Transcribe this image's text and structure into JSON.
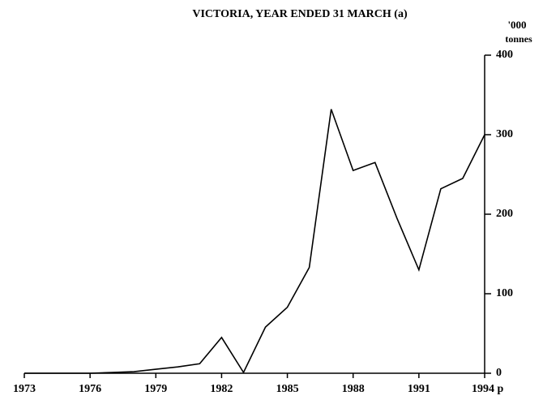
{
  "chart_data": {
    "type": "line",
    "title": "VICTORIA, YEAR ENDED 31 MARCH (a)",
    "y_label_lines": [
      "'000",
      "tonnes"
    ],
    "x": [
      1973,
      1974,
      1975,
      1976,
      1977,
      1978,
      1979,
      1980,
      1981,
      1982,
      1983,
      1984,
      1985,
      1986,
      1987,
      1988,
      1989,
      1990,
      1991,
      1992,
      1993,
      1994
    ],
    "series": [
      {
        "color": "#000000",
        "values": [
          0,
          0,
          0,
          0,
          1,
          2,
          5,
          8,
          12,
          45,
          1,
          58,
          83,
          133,
          332,
          255,
          265,
          195,
          130,
          232,
          245,
          300
        ]
      }
    ],
    "xlim": [
      1973,
      1994
    ],
    "xticks": [
      1973,
      1976,
      1979,
      1982,
      1985,
      1988,
      1991,
      {
        "value": 1994,
        "label": "1994 p"
      }
    ],
    "ylim": [
      0,
      400
    ],
    "yticks": [
      0,
      100,
      200,
      300,
      400
    ],
    "y_axis_side": "right",
    "grid": false
  }
}
